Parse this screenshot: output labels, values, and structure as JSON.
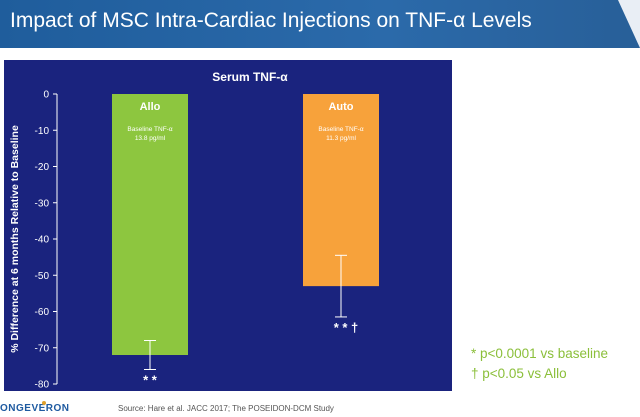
{
  "header": {
    "title": "Impact of MSC Intra-Cardiac Injections on TNF-α Levels"
  },
  "chart_data": {
    "type": "bar",
    "title": "Serum TNF-α",
    "xlabel": "",
    "ylabel": "% Difference at 6 months Relative to Baseline",
    "ylim": [
      -80,
      0
    ],
    "yticks": [
      0,
      -10,
      -20,
      -30,
      -40,
      -50,
      -60,
      -70,
      -80
    ],
    "grid": false,
    "bars": [
      {
        "name": "Allo",
        "value": -72,
        "error": 4,
        "color": "#8dc63f",
        "baseline_label": "Baseline TNF-α",
        "baseline_value": "13.8 pg/ml",
        "significance": "* *"
      },
      {
        "name": "Auto",
        "value": -53,
        "error": 8.5,
        "color": "#f7a23b",
        "baseline_label": "Baseline TNF-α",
        "baseline_value": "11.3 pg/ml",
        "significance": "* * †"
      }
    ]
  },
  "notes": {
    "note1": "* p<0.0001 vs baseline",
    "note2": "† p<0.05 vs Allo"
  },
  "source": "Source: Hare et al. JACC 2017; The POSEIDON-DCM Study",
  "logo": {
    "text": "ONGEVERON"
  },
  "colors": {
    "header": "#2a68a8",
    "chart_background": "#1a237e",
    "note_text": "#8bbf3a"
  }
}
